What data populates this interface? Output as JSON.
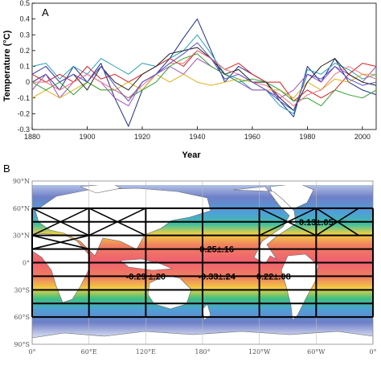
{
  "chart_data": [
    {
      "type": "line",
      "panel_label": "A",
      "xlabel": "Year",
      "ylabel": "Temperature (°C)",
      "xlim": [
        1880,
        2005
      ],
      "ylim": [
        -0.3,
        0.5
      ],
      "xticks": [
        1880,
        1900,
        1920,
        1940,
        1960,
        1980,
        2000
      ],
      "yticks": [
        -0.3,
        -0.2,
        -0.1,
        0,
        0.1,
        0.2,
        0.3,
        0.4,
        0.5
      ],
      "x": [
        1880,
        1885,
        1890,
        1895,
        1900,
        1905,
        1910,
        1915,
        1920,
        1925,
        1930,
        1935,
        1940,
        1945,
        1950,
        1955,
        1960,
        1965,
        1970,
        1975,
        1980,
        1985,
        1990,
        1995,
        2000,
        2005
      ],
      "series": [
        {
          "color": "#1f2f8f",
          "values": [
            0.0,
            0.05,
            -0.05,
            0.1,
            0.0,
            0.12,
            -0.1,
            -0.28,
            -0.05,
            0.05,
            0.15,
            0.28,
            0.4,
            0.2,
            0.0,
            0.1,
            0.05,
            0.0,
            -0.12,
            -0.22,
            0.1,
            0.0,
            0.15,
            0.0,
            -0.05,
            -0.08
          ]
        },
        {
          "color": "#2a9fb0",
          "values": [
            0.1,
            0.12,
            0.02,
            0.1,
            0.05,
            0.15,
            0.1,
            0.05,
            0.12,
            0.1,
            0.15,
            0.2,
            0.3,
            0.18,
            0.05,
            0.02,
            -0.05,
            -0.05,
            -0.15,
            -0.2,
            0.08,
            0.05,
            0.12,
            0.08,
            0.02,
            0.05
          ]
        },
        {
          "color": "#d62020",
          "values": [
            0.05,
            0.0,
            0.05,
            0.0,
            0.1,
            0.02,
            0.05,
            0.0,
            0.05,
            0.1,
            0.15,
            0.1,
            0.2,
            0.15,
            0.08,
            0.12,
            0.05,
            0.0,
            0.0,
            -0.12,
            -0.05,
            -0.1,
            -0.05,
            0.05,
            0.12,
            0.1
          ]
        },
        {
          "color": "#a050c0",
          "values": [
            -0.05,
            0.05,
            -0.1,
            0.0,
            0.05,
            0.0,
            -0.1,
            -0.15,
            0.0,
            0.05,
            0.1,
            0.05,
            0.15,
            0.1,
            0.05,
            0.0,
            -0.05,
            -0.05,
            -0.1,
            -0.05,
            0.05,
            0.0,
            0.1,
            0.05,
            0.0,
            0.1
          ]
        },
        {
          "color": "#e0b020",
          "values": [
            -0.1,
            -0.05,
            -0.1,
            -0.05,
            0.0,
            -0.05,
            -0.05,
            0.0,
            -0.05,
            0.05,
            0.0,
            0.05,
            0.0,
            -0.02,
            0.0,
            0.02,
            0.0,
            -0.05,
            -0.05,
            -0.1,
            0.0,
            -0.05,
            0.02,
            0.0,
            0.05,
            0.05
          ]
        },
        {
          "color": "#30a030",
          "values": [
            0.0,
            -0.05,
            0.0,
            -0.08,
            0.0,
            -0.05,
            -0.05,
            -0.1,
            -0.05,
            0.0,
            0.1,
            0.15,
            0.18,
            0.1,
            0.05,
            0.0,
            0.02,
            0.0,
            -0.05,
            -0.12,
            -0.1,
            -0.15,
            -0.05,
            -0.08,
            -0.1,
            -0.05
          ]
        },
        {
          "color": "#202020",
          "values": [
            0.05,
            0.1,
            0.0,
            0.05,
            -0.05,
            0.1,
            0.0,
            -0.05,
            0.05,
            0.1,
            0.18,
            0.2,
            0.22,
            0.15,
            0.05,
            0.08,
            0.0,
            0.0,
            -0.1,
            -0.18,
            0.0,
            0.1,
            0.15,
            0.05,
            0.0,
            -0.02
          ]
        },
        {
          "color": "#f07080",
          "values": [
            0.0,
            0.0,
            -0.05,
            0.0,
            0.05,
            0.0,
            -0.05,
            -0.1,
            -0.02,
            0.05,
            0.12,
            0.12,
            0.2,
            0.15,
            0.08,
            0.05,
            0.0,
            -0.02,
            -0.08,
            -0.15,
            -0.08,
            -0.05,
            0.05,
            0.1,
            0.05,
            0.02
          ]
        },
        {
          "color": "#5050c8",
          "values": [
            0.05,
            0.1,
            0.0,
            0.05,
            0.0,
            0.1,
            -0.02,
            -0.12,
            0.0,
            0.05,
            0.12,
            0.18,
            0.25,
            0.15,
            0.02,
            0.05,
            0.0,
            -0.05,
            -0.12,
            -0.18,
            0.05,
            0.02,
            0.1,
            0.02,
            -0.02,
            0.0
          ]
        }
      ]
    },
    {
      "type": "heatmap",
      "panel_label": "B",
      "description_values": [
        "0.13±.05",
        "0.25±.16",
        "-0.29 ±.20",
        "-0.33±.24",
        "0.22±.08"
      ],
      "cell_labels": [
        {
          "text": "0.13±.05",
          "lon": 300,
          "lat": 45
        },
        {
          "text": "0.25±.16",
          "lon": 195,
          "lat": 15
        },
        {
          "text": "-0.29 ±.20",
          "lon": 120,
          "lat": -15
        },
        {
          "text": "-0.33±.24",
          "lon": 195,
          "lat": -15
        },
        {
          "text": "0.22±.08",
          "lon": 255,
          "lat": -15
        }
      ],
      "lon_ticks": [
        "0°",
        "60°E",
        "120°E",
        "180°",
        "120°W",
        "60°W",
        "0°"
      ],
      "lat_ticks": [
        "90°N",
        "60°N",
        "30°N",
        "0°",
        "30°S",
        "60°S",
        "90°S"
      ],
      "grid_lons": [
        0,
        60,
        120,
        180,
        240,
        300,
        360
      ],
      "grid_lats": [
        60,
        45,
        30,
        15,
        0,
        -15,
        -30,
        -45,
        -60
      ],
      "crossed_cells": [
        {
          "lon0": 0,
          "lon1": 60,
          "lat0": 60,
          "lat1": 30
        },
        {
          "lon0": 60,
          "lon1": 120,
          "lat0": 60,
          "lat1": 30
        },
        {
          "lon0": 0,
          "lon1": 60,
          "lat0": 30,
          "lat1": 15
        },
        {
          "lon0": 240,
          "lon1": 300,
          "lat0": 60,
          "lat1": 30
        },
        {
          "lon0": 300,
          "lon1": 345,
          "lat0": 60,
          "lat1": 30
        }
      ]
    }
  ]
}
